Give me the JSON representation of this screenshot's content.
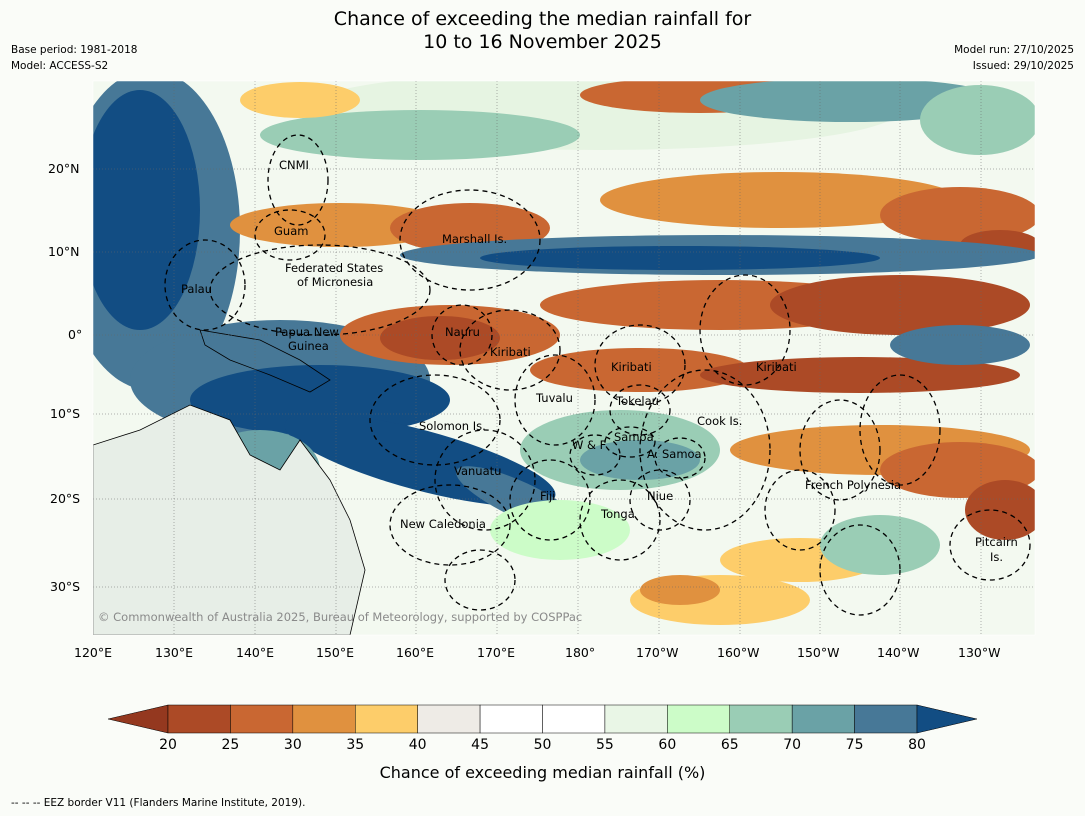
{
  "title": {
    "line1": "Chance of exceeding the median rainfall for",
    "line2": "10 to 16 November 2025"
  },
  "meta": {
    "base_period": "Base period: 1981-2018",
    "model": "Model: ACCESS-S2",
    "model_run": "Model run: 27/10/2025",
    "issued": "Issued: 29/10/2025"
  },
  "map": {
    "lat_labels": [
      "20°N",
      "10°N",
      "0°",
      "10°S",
      "20°S",
      "30°S"
    ],
    "lon_labels": [
      "120°E",
      "130°E",
      "140°E",
      "150°E",
      "160°E",
      "170°E",
      "180°",
      "170°W",
      "160°W",
      "150°W",
      "140°W",
      "130°W"
    ],
    "regions": [
      "CNMI",
      "Guam",
      "Marshall Is.",
      "Federated States",
      "of Micronesia",
      "Palau",
      "Papua New",
      "Guinea",
      "Nauru",
      "Kiribati",
      "Kiribati",
      "Kiribati",
      "Tuvalu",
      "Tokelau",
      "Solomon Is.",
      "Cook Is.",
      "Samoa",
      "W & F",
      "A. Samoa",
      "Vanuatu",
      "French Polynesia",
      "Fiji",
      "Niue",
      "Tonga",
      "New Caledonia",
      "Pitcairn",
      "Is."
    ],
    "copyright": "© Commonwealth of Australia 2025, Bureau of Meteorology, supported by COSPPac"
  },
  "colorbar": {
    "ticks": [
      "20",
      "25",
      "30",
      "35",
      "40",
      "45",
      "50",
      "55",
      "60",
      "65",
      "70",
      "75",
      "80"
    ],
    "colors": [
      "#ac4a26",
      "#c96732",
      "#e0913f",
      "#fdcd6a",
      "#eeebe6",
      "#ffffff",
      "#ffffff",
      "#e9f6e6",
      "#ccfcc8",
      "#9acdb5",
      "#6aa2a6",
      "#477897"
    ],
    "low_color": "#94381f",
    "high_color": "#124d83",
    "title": "Chance of exceeding median rainfall (%)"
  },
  "footer": "--  --  -- EEZ border V11 (Flanders Marine Institute, 2019)."
}
